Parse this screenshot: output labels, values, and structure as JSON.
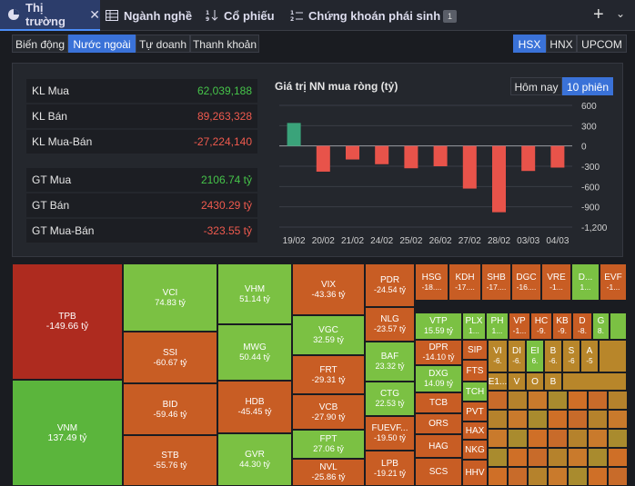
{
  "tabs": [
    {
      "label": "Thị trường",
      "icon": "pie-chart-icon"
    },
    {
      "label": "Ngành nghề",
      "icon": "table-icon"
    },
    {
      "label": "Cổ phiếu",
      "icon": "sort-numeric-icon"
    },
    {
      "label": "Chứng khoán phái sinh",
      "icon": "sort-numbered-list-icon"
    }
  ],
  "tab_badge": "1",
  "views": [
    "Biến động",
    "Nước ngoài",
    "Tự doanh",
    "Thanh khoản"
  ],
  "active_view": "Nước ngoài",
  "exchanges": [
    "HSX",
    "HNX",
    "UPCOM"
  ],
  "active_exchange": "HSX",
  "stats_volume": [
    {
      "label": "KL Mua",
      "value": "62,039,188",
      "tone": "green"
    },
    {
      "label": "KL Bán",
      "value": "89,263,328",
      "tone": "red"
    },
    {
      "label": "KL Mua-Bán",
      "value": "-27,224,140",
      "tone": "red"
    }
  ],
  "stats_value": [
    {
      "label": "GT Mua",
      "value": "2106.74 tỷ",
      "tone": "green"
    },
    {
      "label": "GT Bán",
      "value": "2430.29 tỷ",
      "tone": "red"
    },
    {
      "label": "GT Mua-Bán",
      "value": "-323.55 tỷ",
      "tone": "red"
    }
  ],
  "chart_toggle": [
    "Hôm nay",
    "10 phiên"
  ],
  "chart_toggle_active": "10 phiên",
  "colors": {
    "green": "#46c44a",
    "red": "#ef5a4e",
    "bar_up": "#3aa37a",
    "bar_down": "#e8534a",
    "accent": "#3a72d8"
  },
  "chart_data": {
    "type": "bar",
    "title": "Giá trị NN mua ròng (tỷ)",
    "categories": [
      "19/02",
      "20/02",
      "21/02",
      "24/02",
      "25/02",
      "26/02",
      "27/02",
      "28/02",
      "03/03",
      "04/03"
    ],
    "values": [
      340,
      -380,
      -200,
      -270,
      -330,
      -300,
      -630,
      -980,
      -370,
      -320
    ],
    "ylim": [
      -1200,
      600
    ],
    "yticks": [
      600,
      300,
      0,
      -300,
      -600,
      -900,
      -1200
    ],
    "ytick_labels": [
      "600",
      "300",
      "0",
      "-300",
      "-600",
      "-900",
      "-1,200"
    ],
    "xlabel": "",
    "ylabel": "",
    "grid": true
  },
  "treemap": [
    {
      "sym": "TPB",
      "val": "-149.66 tỷ"
    },
    {
      "sym": "VNM",
      "val": "137.49 tỷ"
    },
    {
      "sym": "VCI",
      "val": "74.83 tỷ"
    },
    {
      "sym": "SSI",
      "val": "-60.67 tỷ"
    },
    {
      "sym": "BID",
      "val": "-59.46 tỷ"
    },
    {
      "sym": "STB",
      "val": "-55.76 tỷ"
    },
    {
      "sym": "VHM",
      "val": "51.14 tỷ"
    },
    {
      "sym": "MWG",
      "val": "50.44 tỷ"
    },
    {
      "sym": "HDB",
      "val": "-45.45 tỷ"
    },
    {
      "sym": "GVR",
      "val": "44.30 tỷ"
    },
    {
      "sym": "VIX",
      "val": "-43.36 tỷ"
    },
    {
      "sym": "VGC",
      "val": "32.59 tỷ"
    },
    {
      "sym": "FRT",
      "val": "-29.31 tỷ"
    },
    {
      "sym": "VCB",
      "val": "-27.90 tỷ"
    },
    {
      "sym": "FPT",
      "val": "27.06 tỷ"
    },
    {
      "sym": "NVL",
      "val": "-25.86 tỷ"
    },
    {
      "sym": "PDR",
      "val": "-24.54 tỷ"
    },
    {
      "sym": "NLG",
      "val": "-23.57 tỷ"
    },
    {
      "sym": "BAF",
      "val": "23.32 tỷ"
    },
    {
      "sym": "CTG",
      "val": "22.53 tỷ"
    },
    {
      "sym": "FUEVF...",
      "val": "-19.50 tỷ"
    },
    {
      "sym": "LPB",
      "val": "-19.21 tỷ"
    },
    {
      "sym": "HSG",
      "val": "-18...."
    },
    {
      "sym": "KDH",
      "val": "-17...."
    },
    {
      "sym": "SHB",
      "val": "-17...."
    },
    {
      "sym": "DGC",
      "val": "-16...."
    },
    {
      "sym": "VRE",
      "val": "-1..."
    },
    {
      "sym": "D...",
      "val": "1..."
    },
    {
      "sym": "EVF",
      "val": "-1..."
    },
    {
      "sym": "VTP",
      "val": "15.59 tỷ"
    },
    {
      "sym": "PLX",
      "val": "1..."
    },
    {
      "sym": "PH",
      "val": "1..."
    },
    {
      "sym": "VP",
      "val": "-1..."
    },
    {
      "sym": "HC",
      "val": "-9."
    },
    {
      "sym": "KB",
      "val": "-9."
    },
    {
      "sym": "D",
      "val": "-8."
    },
    {
      "sym": "G",
      "val": "8."
    },
    {
      "sym": "DPR",
      "val": "-14.10 tỷ"
    },
    {
      "sym": "SIP",
      "val": ""
    },
    {
      "sym": "VI",
      "val": "-6."
    },
    {
      "sym": "DI",
      "val": "-6."
    },
    {
      "sym": "EI",
      "val": "6."
    },
    {
      "sym": "B",
      "val": "-6."
    },
    {
      "sym": "S",
      "val": "-6"
    },
    {
      "sym": "A",
      "val": "-5"
    },
    {
      "sym": "DXG",
      "val": "14.09 tỷ"
    },
    {
      "sym": "FTS",
      "val": ""
    },
    {
      "sym": "E1...",
      "val": ""
    },
    {
      "sym": "V",
      "val": ""
    },
    {
      "sym": "O",
      "val": ""
    },
    {
      "sym": "B",
      "val": ""
    },
    {
      "sym": "TCB",
      "val": ""
    },
    {
      "sym": "TCH",
      "val": ""
    },
    {
      "sym": "PVT",
      "val": ""
    },
    {
      "sym": "ORS",
      "val": ""
    },
    {
      "sym": "HAX",
      "val": ""
    },
    {
      "sym": "HAG",
      "val": ""
    },
    {
      "sym": "NKG",
      "val": ""
    },
    {
      "sym": "SCS",
      "val": ""
    },
    {
      "sym": "HHV",
      "val": ""
    }
  ]
}
